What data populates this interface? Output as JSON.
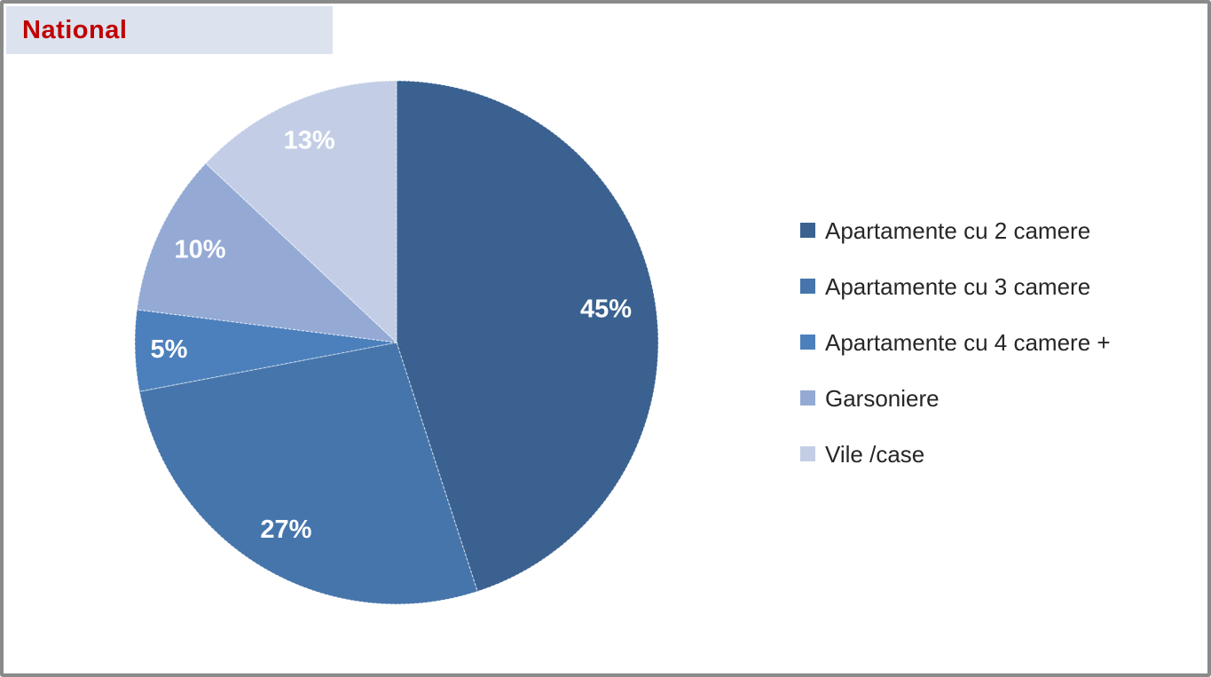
{
  "header": {
    "title": "National",
    "title_color": "#C00000",
    "box_color": "#DCE3EF"
  },
  "chart_data": {
    "type": "pie",
    "title": "National",
    "categories": [
      "Apartamente cu 2 camere",
      "Apartamente cu 3 camere",
      "Apartamente cu 4 camere +",
      "Garsoniere",
      "Vile /case"
    ],
    "values": [
      45,
      27,
      5,
      10,
      13
    ],
    "slice_labels": [
      "45%",
      "27%",
      "5%",
      "10%",
      "13%"
    ],
    "colors": [
      "#3A6190",
      "#4675AB",
      "#4C80BC",
      "#94AAD5",
      "#C3CEE6"
    ],
    "slice_label_color": "#FFFFFF",
    "start_angle_deg": 0,
    "direction": "clockwise",
    "legend_position": "right",
    "legend_text_color": "#262626",
    "label_radius_frac": [
      0.81,
      0.83,
      0.87,
      0.83,
      0.84
    ]
  }
}
